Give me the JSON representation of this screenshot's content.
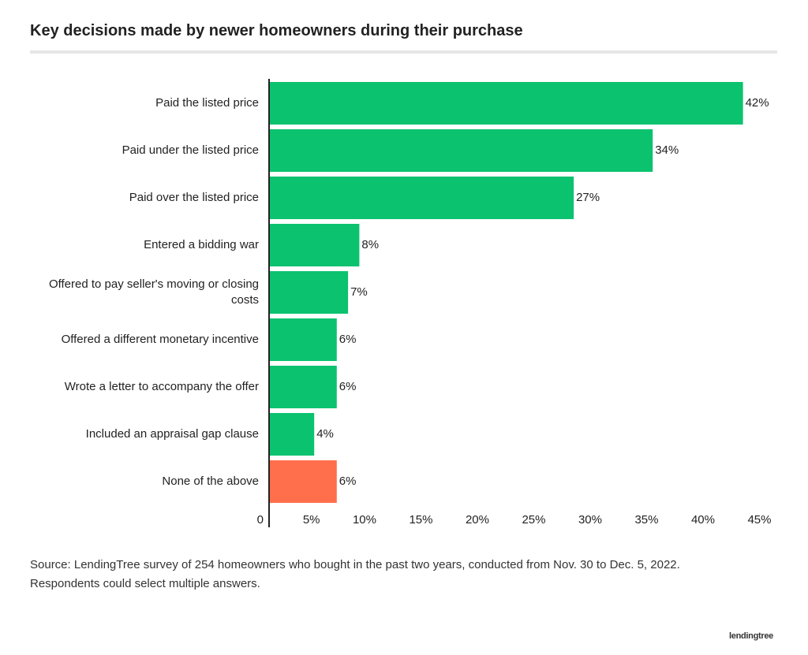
{
  "chart_data": {
    "type": "hbar",
    "title": "Key decisions made by newer homeowners during their purchase",
    "categories": [
      "Paid the listed price",
      "Paid under the listed price",
      "Paid over the listed price",
      "Entered a bidding war",
      "Offered to pay seller's moving or closing costs",
      "Offered a different monetary incentive",
      "Wrote a letter to accompany the offer",
      "Included an appraisal gap clause",
      "None of the above"
    ],
    "values": [
      42,
      34,
      27,
      8,
      7,
      6,
      6,
      4,
      6
    ],
    "value_labels": [
      "42%",
      "34%",
      "27%",
      "8%",
      "7%",
      "6%",
      "6%",
      "4%",
      "6%"
    ],
    "colors": [
      "#0bc26f",
      "#0bc26f",
      "#0bc26f",
      "#0bc26f",
      "#0bc26f",
      "#0bc26f",
      "#0bc26f",
      "#0bc26f",
      "#ff6f4c"
    ],
    "xlim": [
      0,
      45
    ],
    "xticks": [
      0,
      {
        "value": 5,
        "label": "5%"
      },
      {
        "value": 10,
        "label": "10%"
      },
      {
        "value": 15,
        "label": "15%"
      },
      {
        "value": 20,
        "label": "20%"
      },
      {
        "value": 25,
        "label": "25%"
      },
      {
        "value": 30,
        "label": "30%"
      },
      {
        "value": 35,
        "label": "35%"
      },
      {
        "value": 40,
        "label": "40%"
      },
      {
        "value": 45,
        "label": "45%"
      }
    ],
    "grid": false,
    "notes": [
      "Source: LendingTree survey of 254 homeowners who bought in the past two years, conducted from Nov. 30 to Dec. 5, 2022.",
      "Respondents could select multiple answers."
    ],
    "brand": "lendingtree"
  }
}
